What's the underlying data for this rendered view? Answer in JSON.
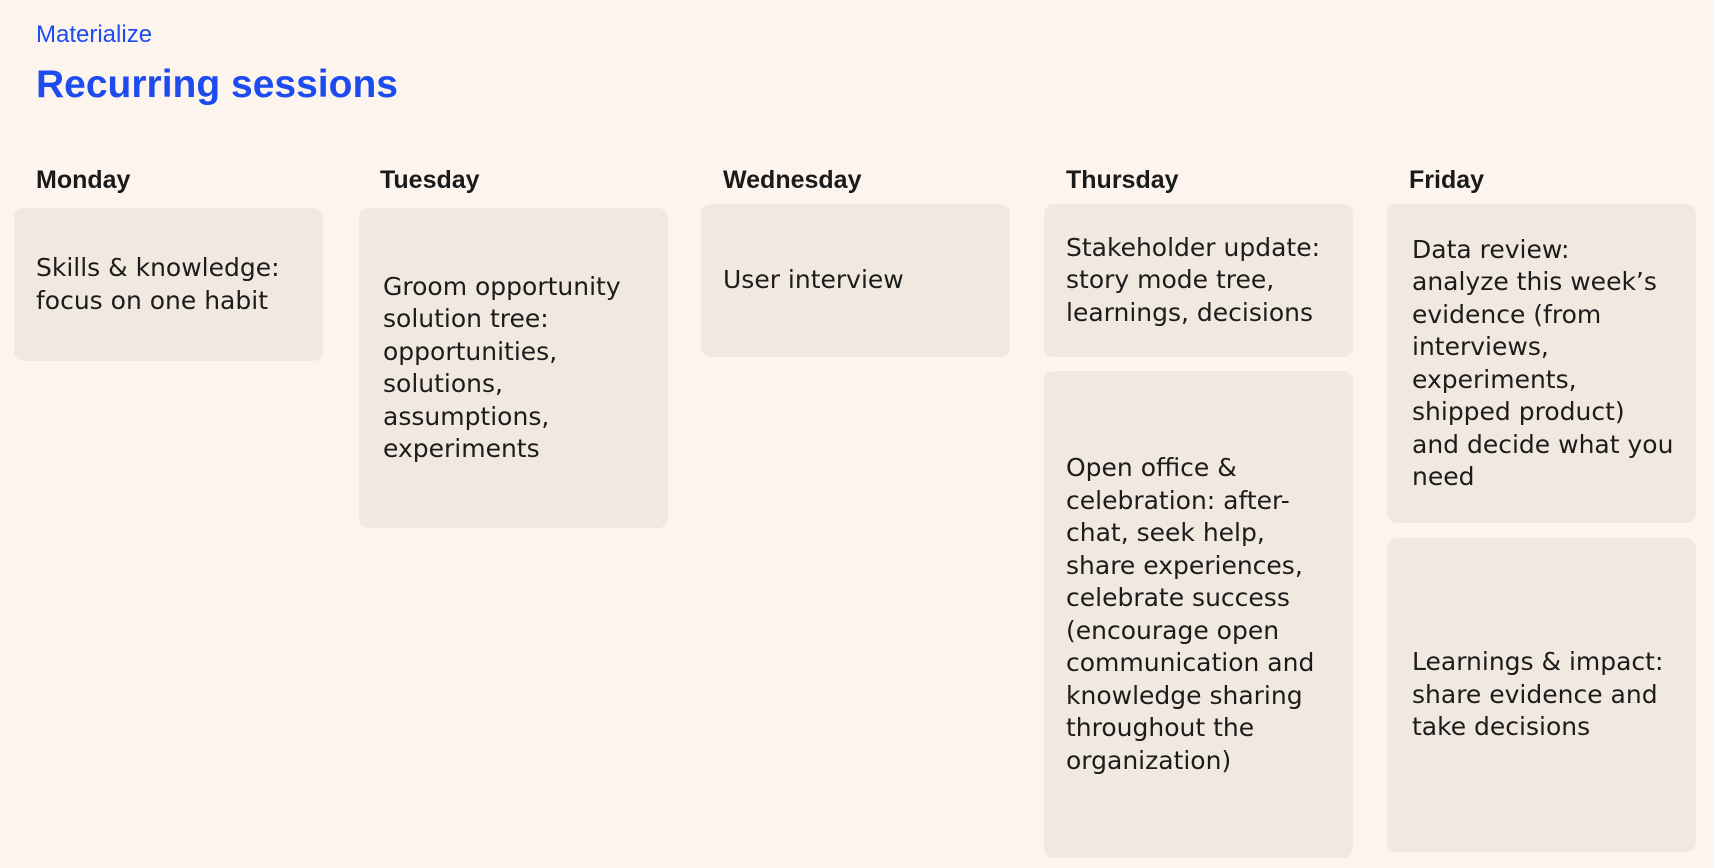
{
  "header": {
    "eyebrow": "Materialize",
    "title": "Recurring sessions"
  },
  "days": {
    "monday": {
      "label": "Monday",
      "sessions": [
        "Skills & knowledge: focus on one habit"
      ]
    },
    "tuesday": {
      "label": "Tuesday",
      "sessions": [
        "Groom opportunity solution tree: opportunities, solutions, assumptions, experiments"
      ]
    },
    "wednesday": {
      "label": "Wednesday",
      "sessions": [
        "User interview"
      ]
    },
    "thursday": {
      "label": "Thursday",
      "sessions": [
        "Stakeholder update: story mode tree, learnings, decisions",
        "Open office & celebration: after-chat, seek help, share experiences, celebrate success (encourage open communication and knowledge sharing throughout the organization)"
      ]
    },
    "friday": {
      "label": "Friday",
      "sessions": [
        "Data review: analyze this week’s evidence (from interviews, experiments, shipped product) and decide what you need",
        "Learnings & impact: share evidence and take decisions"
      ]
    }
  },
  "colors": {
    "background": "#fcf4ed",
    "card": "#f1e8df",
    "accent": "#1c4cf0",
    "text": "#1c1c1c"
  }
}
